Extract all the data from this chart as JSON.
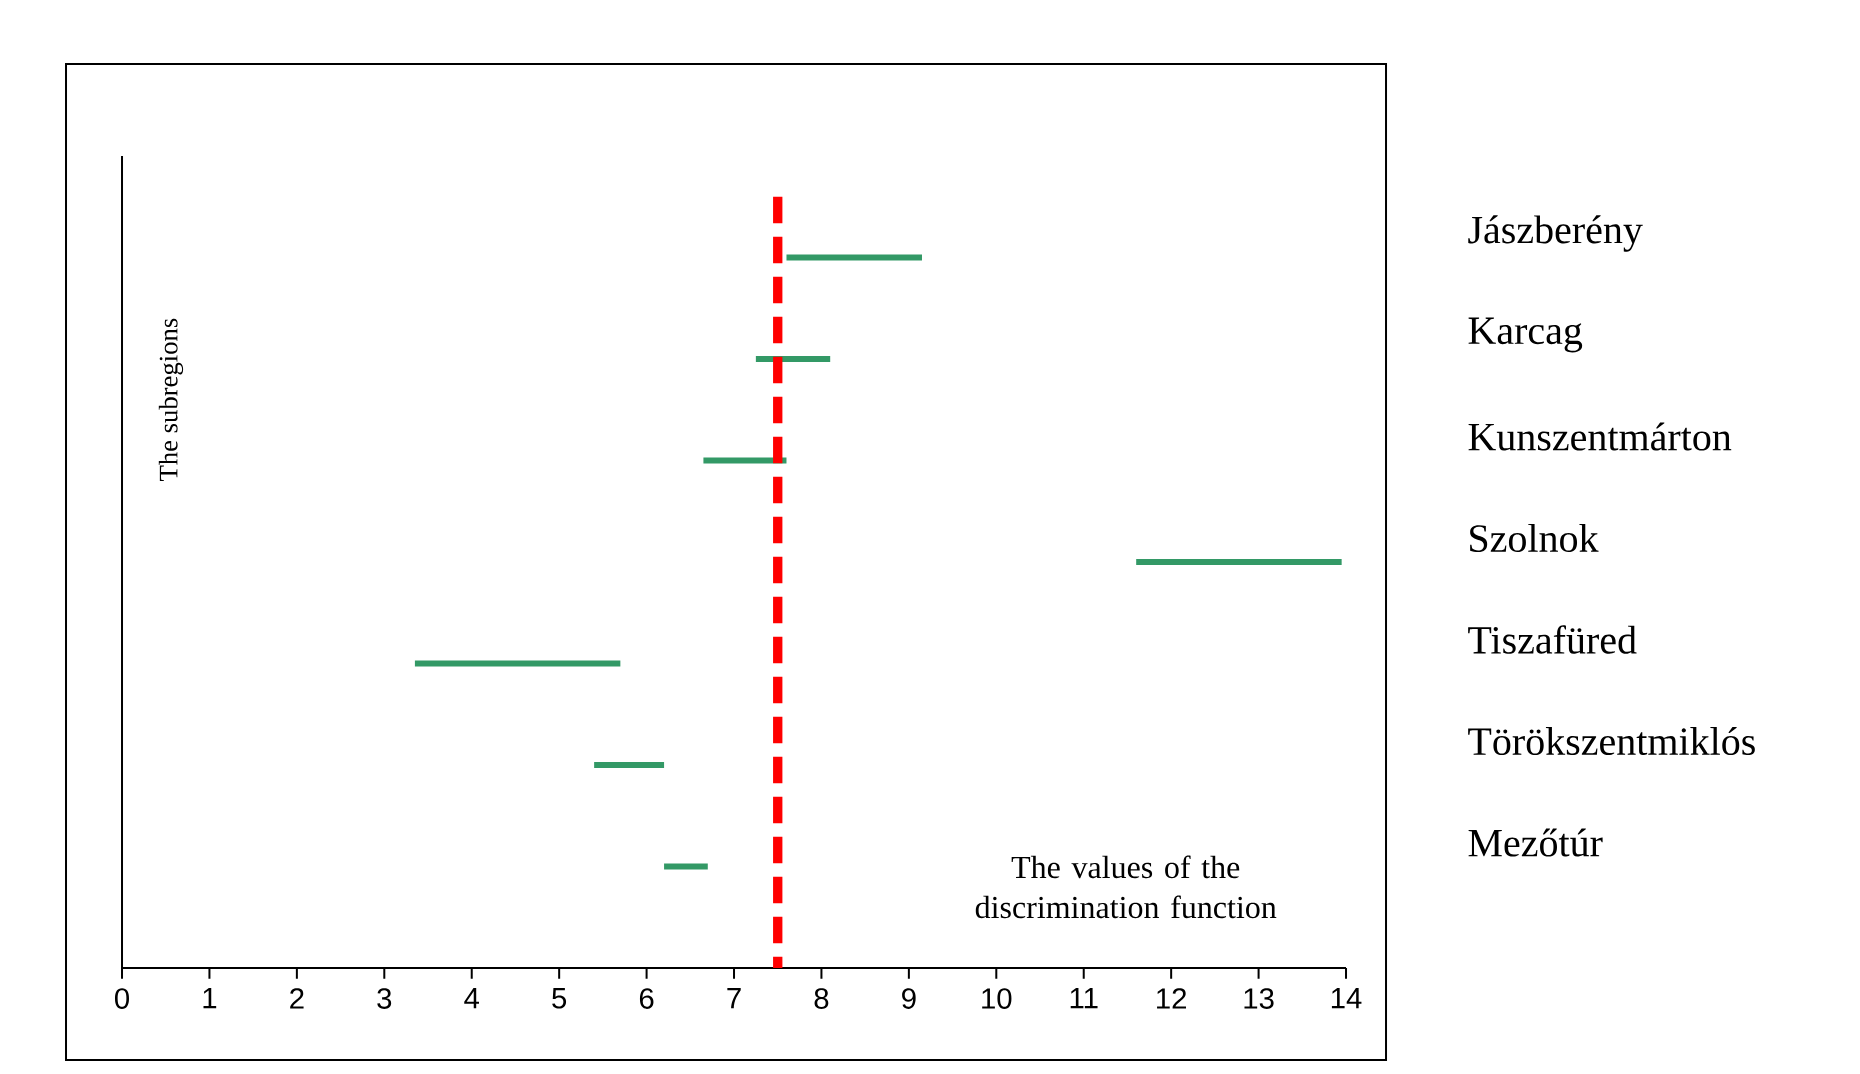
{
  "chart_data": {
    "type": "bar",
    "orientation": "horizontal",
    "xlabel": "The values of the discrimination function",
    "ylabel": "The subregions",
    "categories": [
      "Jászberény",
      "Karcag",
      "Kunszentmárton",
      "Szolnok",
      "Tiszafüred",
      "Törökszentmiklós",
      "Mezőtúr"
    ],
    "base": [
      7.6,
      7.25,
      6.65,
      11.6,
      3.35,
      5.4,
      6.2
    ],
    "values": [
      1.55,
      0.85,
      0.95,
      2.35,
      2.35,
      0.8,
      0.5
    ],
    "color": "#339966",
    "xlim": [
      0,
      14
    ],
    "xticks": [
      0,
      1,
      2,
      3,
      4,
      5,
      6,
      7,
      8,
      9,
      10,
      11,
      12,
      13,
      14
    ],
    "ref_lines": [
      {
        "axis": "x",
        "value": 7.5,
        "color": "#ff0000",
        "line_style": "dashed"
      }
    ],
    "grid": false
  }
}
